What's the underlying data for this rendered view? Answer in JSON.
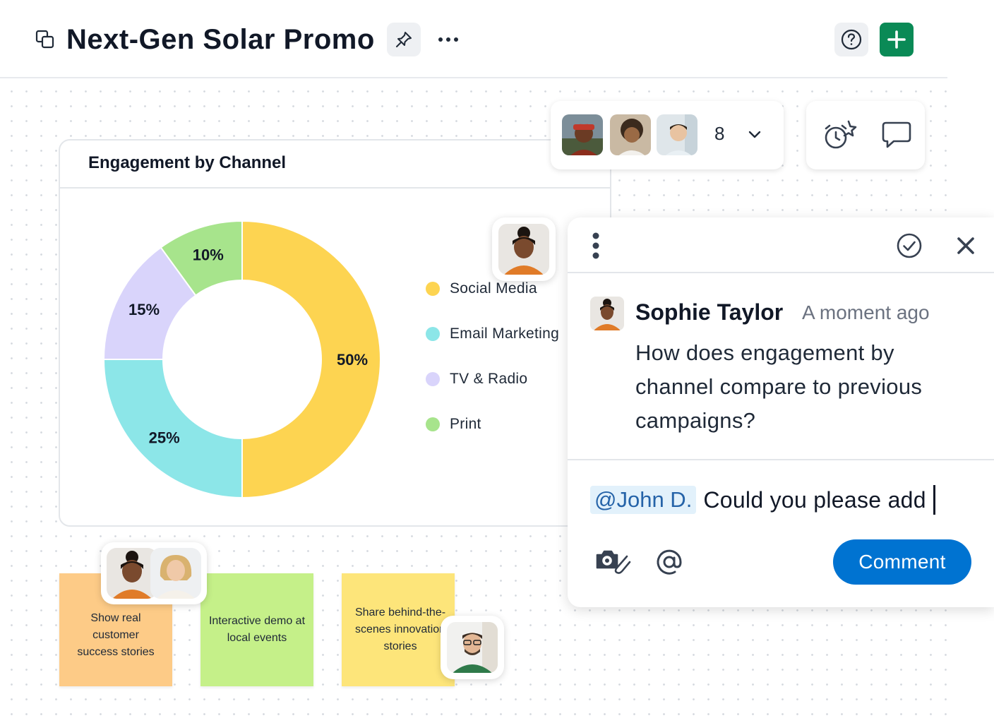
{
  "header": {
    "title": "Next-Gen Solar Promo",
    "icons": [
      "copy-icon",
      "pin-icon",
      "more-icon",
      "help-icon",
      "plus-icon"
    ]
  },
  "colors": {
    "accent_green": "#0a8a56",
    "comment_blue": "#0073d1",
    "mention_bg": "#e2f1fb",
    "social_media": "#fdd451",
    "email_marketing": "#8ce6e8",
    "tv_radio": "#d9d4fb",
    "print": "#a7e48c",
    "note_orange": "#fdcb87",
    "note_green": "#c5f089",
    "note_yellow": "#fde57a"
  },
  "collaborators": {
    "count": "8",
    "avatars": [
      "avatar-man-red-cap",
      "avatar-man-curly-hair",
      "avatar-man-white-shirt"
    ]
  },
  "tools": [
    "timer-sparkle-icon",
    "comment-icon"
  ],
  "chart_data": {
    "type": "pie",
    "title": "Engagement by Channel",
    "donut": true,
    "labels": [
      "Social Media",
      "Email Marketing",
      "TV & Radio",
      "Print"
    ],
    "values": [
      50,
      25,
      15,
      10
    ],
    "value_labels": [
      "50%",
      "25%",
      "15%",
      "10%"
    ],
    "colors": [
      "#fdd451",
      "#8ce6e8",
      "#d9d4fb",
      "#a7e48c"
    ],
    "legend_position": "right"
  },
  "comment": {
    "author": "Sophie Taylor",
    "time": "A moment ago",
    "body": "How does engagement by channel compare to previous campaigns?",
    "mention": "@John D.",
    "draft": "Could you please add",
    "button": "Comment"
  },
  "notes": [
    {
      "text": "Show real customer success stories",
      "color": "#fdcb87"
    },
    {
      "text": "Interactive demo at local events",
      "color": "#c5f089"
    },
    {
      "text": "Share behind-the-scenes innovation stories",
      "color": "#fde57a"
    }
  ]
}
